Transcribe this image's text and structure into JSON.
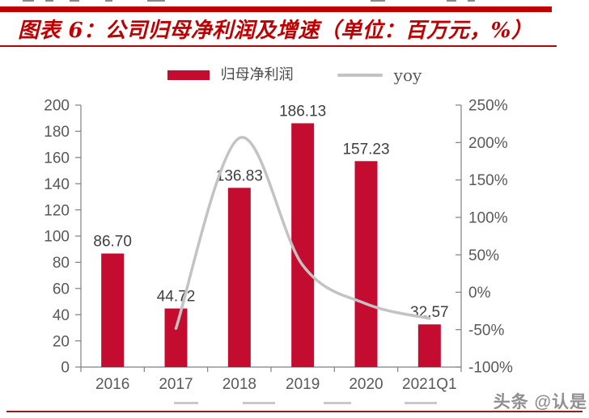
{
  "figure": {
    "title": "图表 6：公司归母净利润及增速（单位：百万元，%）",
    "accent_color": "#C00000"
  },
  "legend": {
    "bar_label": "归母净利润",
    "line_label": "yoy"
  },
  "chart_data": {
    "type": "bar",
    "subtype": "bar-line-combo",
    "title": "公司归母净利润及增速（单位：百万元，%）",
    "categories": [
      "2016",
      "2017",
      "2018",
      "2019",
      "2020",
      "2021Q1"
    ],
    "series": [
      {
        "name": "归母净利润",
        "type": "bar",
        "axis": "left",
        "color": "#C40B30",
        "values": [
          86.7,
          44.72,
          136.83,
          186.13,
          157.23,
          32.57
        ],
        "labels": [
          "86.70",
          "44.72",
          "136.83",
          "186.13",
          "157.23",
          "32.57"
        ]
      },
      {
        "name": "yoy",
        "type": "line",
        "axis": "right",
        "color": "#C3C3C3",
        "values": [
          null,
          -48.4,
          206.0,
          36.0,
          -15.5,
          -35.0
        ]
      }
    ],
    "left_axis": {
      "min": 0,
      "max": 200,
      "step": 20,
      "ticks": [
        "0",
        "20",
        "40",
        "60",
        "80",
        "100",
        "120",
        "140",
        "160",
        "180",
        "200"
      ]
    },
    "right_axis": {
      "min": -100,
      "max": 250,
      "step": 50,
      "ticks": [
        "-100%",
        "-50%",
        "0%",
        "50%",
        "100%",
        "150%",
        "200%",
        "250%"
      ]
    },
    "gridlines": false,
    "legend_position": "top-center",
    "axis_color": "#808080",
    "tick_label_color": "#595959",
    "data_label_color": "#3f3f3f"
  },
  "page": {
    "watermark": "头条 @认是"
  }
}
